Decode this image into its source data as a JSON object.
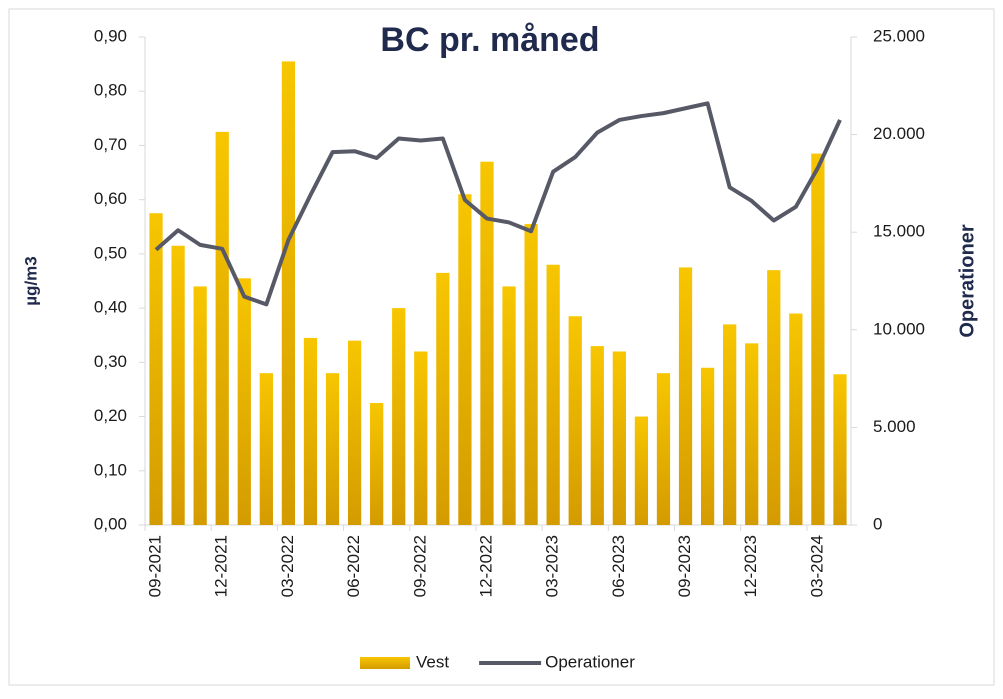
{
  "chart_data": {
    "type": "bar-line",
    "title": "BC pr. måned",
    "y_label": "µg/m3",
    "y2_label": "Operationer",
    "categories": [
      "09-2021",
      null,
      null,
      "12-2021",
      null,
      null,
      "03-2022",
      null,
      null,
      "06-2022",
      null,
      null,
      "09-2022",
      null,
      null,
      "12-2022",
      null,
      null,
      "03-2023",
      null,
      null,
      "06-2023",
      null,
      null,
      "09-2023",
      null,
      null,
      "12-2023",
      null,
      null,
      "03-2024",
      null
    ],
    "series": [
      {
        "name": "Vest",
        "color": "#f7c600",
        "type": "bar",
        "values": [
          0.575,
          0.515,
          0.44,
          0.725,
          0.455,
          0.28,
          0.855,
          0.345,
          0.28,
          0.34,
          0.225,
          0.4,
          0.32,
          0.465,
          0.61,
          0.67,
          0.44,
          0.555,
          0.48,
          0.385,
          0.33,
          0.32,
          0.2,
          0.28,
          0.475,
          0.29,
          0.37,
          0.335,
          0.47,
          0.39,
          0.685,
          0.278
        ]
      },
      {
        "name": "Operationer",
        "color": "#575a66",
        "type": "line",
        "axis": "y2",
        "values": [
          14100,
          15100,
          14350,
          14150,
          11700,
          11300,
          14600,
          16900,
          19100,
          19150,
          18800,
          19800,
          19700,
          19800,
          16650,
          15700,
          15500,
          15050,
          18100,
          18850,
          20100,
          20750,
          20950,
          21100,
          21350,
          21600,
          17300,
          16600,
          15600,
          16300,
          18300,
          20750
        ]
      }
    ],
    "ylim": [
      0,
      0.9
    ],
    "yticks": [
      {
        "value": 0,
        "label": "0,00"
      },
      {
        "value": 0.1,
        "label": "0,10"
      },
      {
        "value": 0.2,
        "label": "0,20"
      },
      {
        "value": 0.3,
        "label": "0,30"
      },
      {
        "value": 0.4,
        "label": "0,40"
      },
      {
        "value": 0.5,
        "label": "0,50"
      },
      {
        "value": 0.6,
        "label": "0,60"
      },
      {
        "value": 0.7,
        "label": "0,70"
      },
      {
        "value": 0.8,
        "label": "0,80"
      },
      {
        "value": 0.9,
        "label": "0,90"
      }
    ],
    "y2lim": [
      0,
      25000
    ],
    "y2ticks": [
      0,
      {
        "value": 5000,
        "label": "5.000"
      },
      {
        "value": 10000,
        "label": "10.000"
      },
      {
        "value": 15000,
        "label": "15.000"
      },
      {
        "value": 20000,
        "label": "20.000"
      },
      {
        "value": 25000,
        "label": "25.000"
      }
    ],
    "legend": "bottom"
  }
}
